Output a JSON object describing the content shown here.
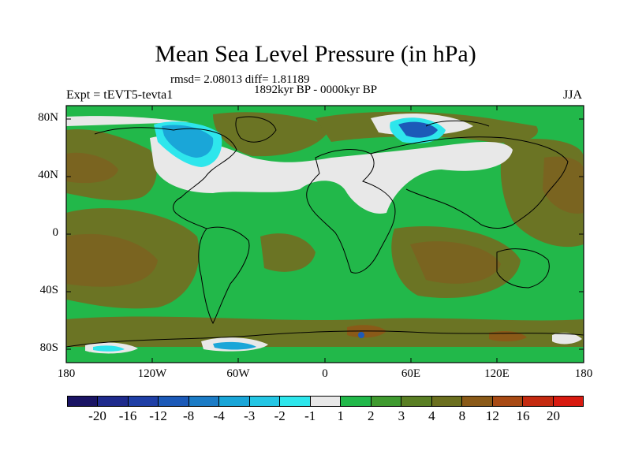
{
  "header": {
    "title": "Mean Sea Level Pressure (in hPa)",
    "stats": "rmsd= 2.08013 diff= 1.81189",
    "period": "1892kyr BP - 0000kyr BP",
    "experiment": "Expt = tEVT5-tevta1",
    "season": "JJA"
  },
  "axes": {
    "y_ticks": [
      "80N",
      "40N",
      "0",
      "40S",
      "80S"
    ],
    "x_ticks": [
      "180",
      "120W",
      "60W",
      "0",
      "60E",
      "120E",
      "180"
    ]
  },
  "colorbar": {
    "labels": [
      "-20",
      "-16",
      "-12",
      "-8",
      "-4",
      "-3",
      "-2",
      "-1",
      "1",
      "2",
      "3",
      "4",
      "8",
      "12",
      "16",
      "20"
    ],
    "colors": [
      "#1a1464",
      "#1e2a8c",
      "#1f3fa6",
      "#1c5ab8",
      "#1c7cc6",
      "#1aa6d8",
      "#24c6e4",
      "#2ee6ec",
      "#e8e8e8",
      "#22b84a",
      "#3f9a2f",
      "#5a7f24",
      "#6b6f1f",
      "#8a5a18",
      "#a84a14",
      "#c42a10",
      "#d81a10"
    ]
  },
  "palette": {
    "ocean_green": "#22b84a",
    "olive": "#5a7f24",
    "brown": "#7a6420",
    "white_band": "#e8e8e8",
    "blue_low": "#1aa6d8",
    "cyan_low": "#2ee6ec"
  }
}
